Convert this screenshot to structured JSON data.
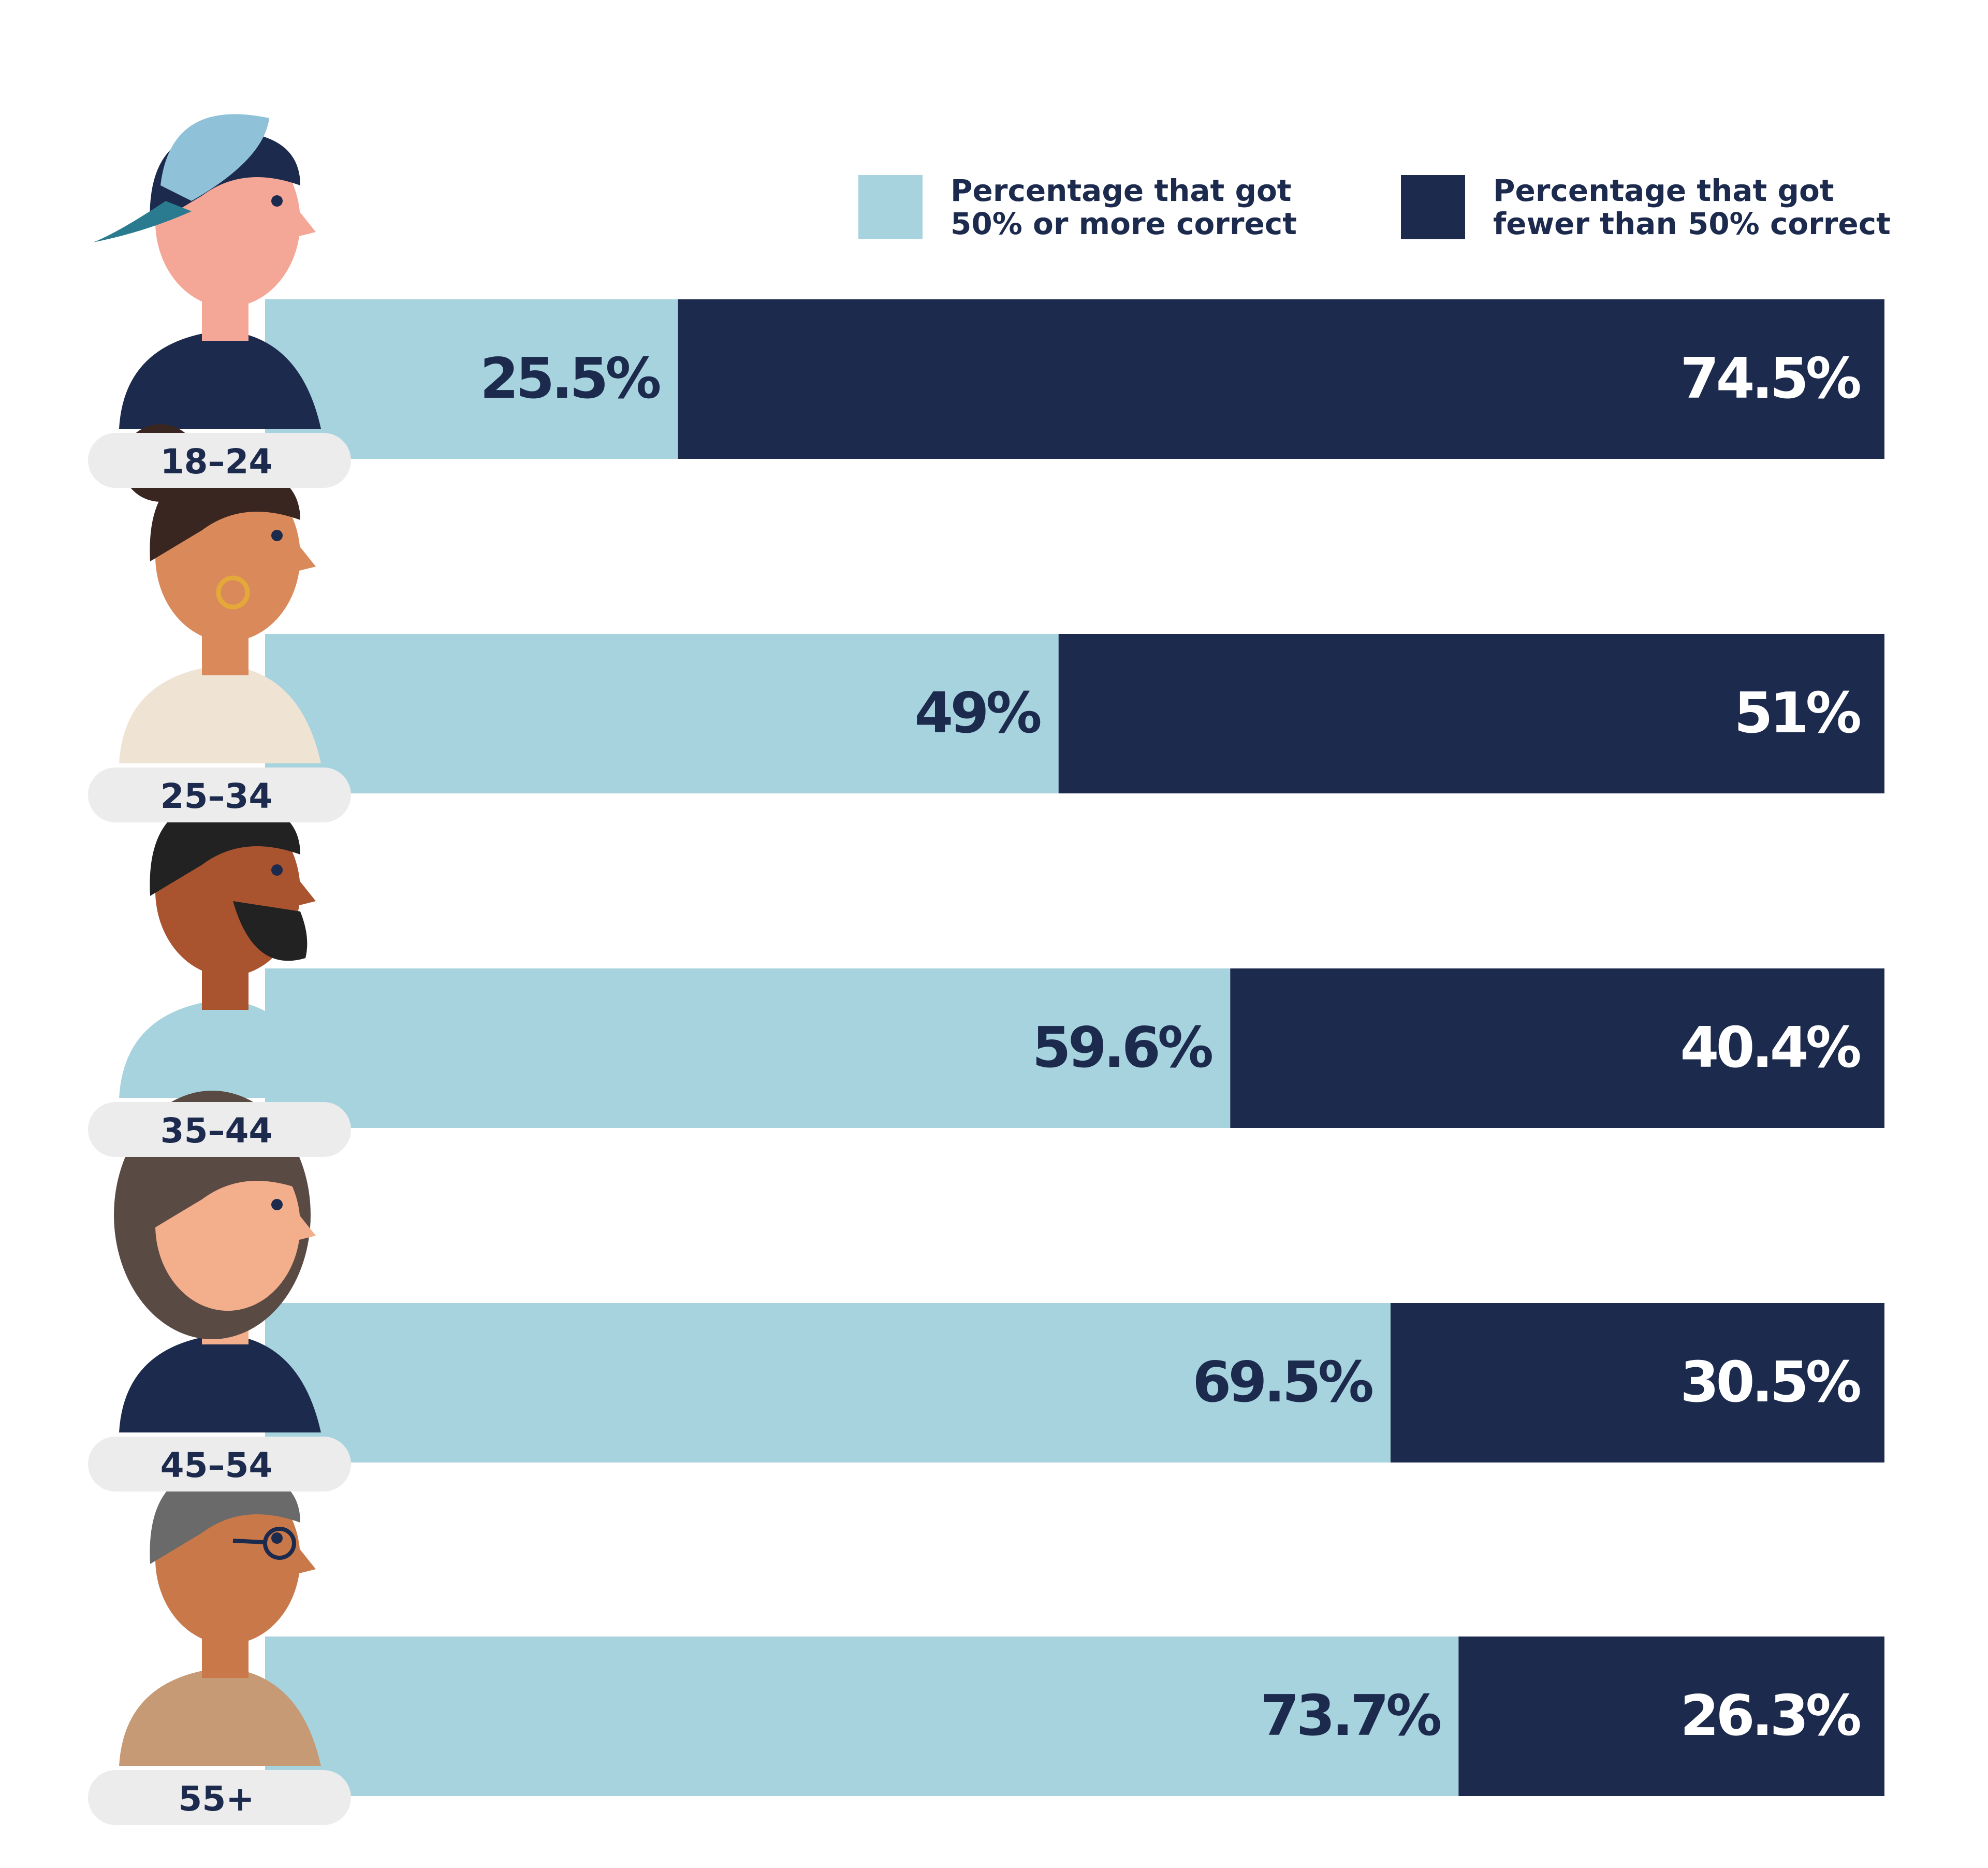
{
  "colors": {
    "correct": "#a6d3de",
    "incorrect": "#1c2a4d",
    "label_dark": "#1c2a4d",
    "label_light": "#ffffff",
    "age_pill": "#ececec"
  },
  "legend": {
    "correct": [
      "Percentage that got",
      "50% or more correct"
    ],
    "incorrect": [
      "Percentage that got",
      "fewer than 50% correct"
    ]
  },
  "chart_data": {
    "type": "bar",
    "orientation": "horizontal",
    "stacked": true,
    "categories": [
      "18–24",
      "25–34",
      "35–44",
      "45–54",
      "55+"
    ],
    "series": [
      {
        "name": "Percentage that got 50% or more correct",
        "values": [
          25.5,
          49,
          59.6,
          69.5,
          73.7
        ],
        "labels": [
          "25.5%",
          "49%",
          "59.6%",
          "69.5%",
          "73.7%"
        ]
      },
      {
        "name": "Percentage that got fewer than 50% correct",
        "values": [
          74.5,
          51,
          40.4,
          30.5,
          26.3
        ],
        "labels": [
          "74.5%",
          "51%",
          "40.4%",
          "30.5%",
          "26.3%"
        ]
      }
    ],
    "xlim": [
      0,
      100
    ],
    "legend_position": "top-right",
    "grid": false,
    "avatars": [
      "young-man-cap-icon",
      "woman-bun-earring-icon",
      "bearded-man-icon",
      "woman-shoulder-hair-icon",
      "older-man-glasses-icon"
    ]
  }
}
